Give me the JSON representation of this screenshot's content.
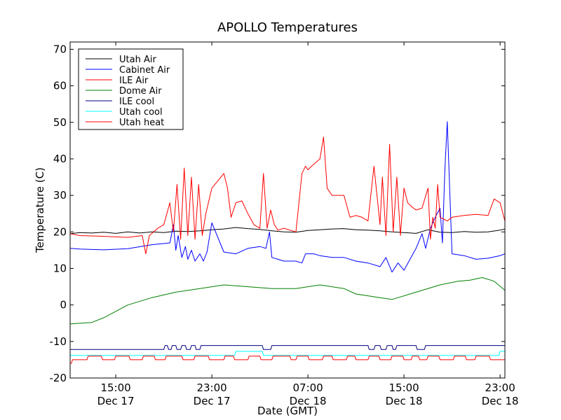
{
  "chart_data": {
    "type": "line",
    "title": "APOLLO Temperatures",
    "xlabel": "Date (GMT)",
    "ylabel": "Temperature (C)",
    "x_units": "hours since Dec 17 00:00 GMT",
    "xlim": [
      11.2,
      47.4
    ],
    "ylim": [
      -20,
      72
    ],
    "grid": false,
    "legend_position": "top-left",
    "yticks": [
      {
        "value": -20,
        "label": "-20"
      },
      {
        "value": -10,
        "label": "-10"
      },
      {
        "value": 0,
        "label": "0"
      },
      {
        "value": 10,
        "label": "10"
      },
      {
        "value": 20,
        "label": "20"
      },
      {
        "value": 30,
        "label": "30"
      },
      {
        "value": 40,
        "label": "40"
      },
      {
        "value": 50,
        "label": "50"
      },
      {
        "value": 60,
        "label": "60"
      },
      {
        "value": 70,
        "label": "70"
      }
    ],
    "xticks": [
      {
        "value": 15,
        "time": "15:00",
        "date": "Dec 17"
      },
      {
        "value": 23,
        "time": "23:00",
        "date": "Dec 17"
      },
      {
        "value": 31,
        "time": "07:00",
        "date": "Dec 18"
      },
      {
        "value": 39,
        "time": "15:00",
        "date": "Dec 18"
      },
      {
        "value": 47,
        "time": "23:00",
        "date": "Dec 18"
      }
    ],
    "series": [
      {
        "name": "Utah Air",
        "color": "#000000",
        "x": [
          11.2,
          12,
          13,
          14,
          15,
          16,
          17,
          18,
          19,
          20,
          21,
          22,
          23,
          24,
          25,
          26,
          27,
          28,
          29,
          30,
          31,
          32,
          33,
          34,
          35,
          36,
          37,
          38,
          39,
          40,
          41,
          42,
          43,
          44,
          45,
          46,
          47,
          47.4
        ],
        "values": [
          19.5,
          19.8,
          19.7,
          19.9,
          19.6,
          20.0,
          19.7,
          20.0,
          19.8,
          20.2,
          20.1,
          20.3,
          20.6,
          20.8,
          21.2,
          20.9,
          20.7,
          20.3,
          20.0,
          19.9,
          20.4,
          20.6,
          20.8,
          20.9,
          20.6,
          20.5,
          20.3,
          20.0,
          19.8,
          19.6,
          20.6,
          19.9,
          19.8,
          20.1,
          19.9,
          20.0,
          20.5,
          20.8
        ]
      },
      {
        "name": "Cabinet Air",
        "color": "#0000ff",
        "x": [
          11.2,
          12,
          14,
          16,
          18,
          19.5,
          19.8,
          20.0,
          20.2,
          20.5,
          20.8,
          21.0,
          21.3,
          21.6,
          22.0,
          22.3,
          22.6,
          23.0,
          24,
          25,
          26,
          27,
          27.5,
          27.8,
          28.0,
          28.5,
          29,
          30,
          30.5,
          30.8,
          31.5,
          32,
          33,
          34,
          35,
          36,
          37,
          37.5,
          38.0,
          38.5,
          39.0,
          40,
          40.5,
          40.8,
          41.2,
          41.6,
          42.0,
          42.2,
          42.4,
          42.6,
          43,
          44,
          45,
          46,
          47,
          47.4
        ],
        "values": [
          15.5,
          15.3,
          15.1,
          15.4,
          16.5,
          17.0,
          22.0,
          15.0,
          19.0,
          13.0,
          16.0,
          12.5,
          15.0,
          12.0,
          14.0,
          12.0,
          14.5,
          22.5,
          14.5,
          14.0,
          15.5,
          16.0,
          15.5,
          20.0,
          13.0,
          12.5,
          12.0,
          12.0,
          11.5,
          14.0,
          14.0,
          13.5,
          13.0,
          13.0,
          12.0,
          11.5,
          10.5,
          13.0,
          9.0,
          11.5,
          9.5,
          15.5,
          19.5,
          15.5,
          21.0,
          24.0,
          26.5,
          17.0,
          37.0,
          50.2,
          14.0,
          13.5,
          12.5,
          12.8,
          13.5,
          14.0
        ]
      },
      {
        "name": "ILE Air",
        "color": "#ff0000",
        "x": [
          11.2,
          12,
          14,
          16,
          17.2,
          17.5,
          17.8,
          18.5,
          19.0,
          19.5,
          19.8,
          20.1,
          20.4,
          20.7,
          21.0,
          21.3,
          21.6,
          21.9,
          22.2,
          22.5,
          23.0,
          23.5,
          24.0,
          24.3,
          24.6,
          25.0,
          25.5,
          26.0,
          26.5,
          27.0,
          27.3,
          27.6,
          27.9,
          28.2,
          28.5,
          29,
          30,
          30.5,
          30.8,
          31.0,
          31.3,
          32.0,
          32.3,
          32.6,
          33.0,
          34,
          34.5,
          35,
          35.5,
          36.0,
          36.5,
          37.0,
          37.2,
          37.5,
          37.8,
          38.1,
          38.4,
          38.7,
          39.0,
          39.3,
          39.6,
          40.0,
          40.5,
          41.0,
          41.2,
          41.4,
          41.6,
          41.8,
          42.0,
          42.3,
          42.6,
          43,
          44,
          45,
          46,
          46.5,
          47,
          47.4
        ],
        "values": [
          19.5,
          19.0,
          18.8,
          18.5,
          19.0,
          14.0,
          19.0,
          21.0,
          22.0,
          28.0,
          20.0,
          33.0,
          18.0,
          37.5,
          19.0,
          35.0,
          18.0,
          33.0,
          19.0,
          25.0,
          32.0,
          34.0,
          36.0,
          32.0,
          24.0,
          28.0,
          28.5,
          25.0,
          22.0,
          21.0,
          36.0,
          21.0,
          26.0,
          22.0,
          20.5,
          21.0,
          20.0,
          36.0,
          38.0,
          37.0,
          38.0,
          40.0,
          46.0,
          32.0,
          30.0,
          30.0,
          24.0,
          24.5,
          24.0,
          23.0,
          38.0,
          22.0,
          35.0,
          19.0,
          44.0,
          20.0,
          35.0,
          19.0,
          32.0,
          28.0,
          27.0,
          26.0,
          26.5,
          32.0,
          18.0,
          24.0,
          21.0,
          33.0,
          24.0,
          23.5,
          23.0,
          24.0,
          24.5,
          24.8,
          24.5,
          29.0,
          28.0,
          23.0
        ]
      },
      {
        "name": "Dome Air",
        "color": "#008000",
        "x": [
          11.2,
          12,
          13,
          14,
          16,
          18,
          20,
          22,
          24,
          26,
          28,
          30,
          32,
          34,
          35,
          36,
          37,
          38,
          40,
          42,
          43.5,
          44.5,
          45.5,
          46.5,
          47.4
        ],
        "values": [
          -5.2,
          -5.0,
          -4.8,
          -3.5,
          0.0,
          2.0,
          3.5,
          4.5,
          5.5,
          5.0,
          4.5,
          4.5,
          5.5,
          4.5,
          3.0,
          2.5,
          2.0,
          1.5,
          3.5,
          5.5,
          6.5,
          6.8,
          7.5,
          6.5,
          4.0
        ]
      },
      {
        "name": "ILE cool",
        "color": "#000080",
        "x": [
          11.2,
          19.0,
          19.1,
          19.3,
          19.4,
          19.6,
          19.7,
          20.0,
          20.1,
          20.4,
          20.5,
          20.8,
          20.9,
          21.2,
          21.3,
          21.6,
          21.7,
          22.0,
          22.1,
          24.0,
          26.0,
          27.2,
          27.3,
          27.9,
          28.0,
          33.5,
          33.6,
          36.0,
          36.1,
          36.5,
          36.6,
          37.0,
          37.1,
          37.5,
          37.6,
          38.0,
          38.1,
          38.3,
          38.4,
          40.0,
          40.1,
          40.7,
          40.8,
          42.0,
          42.1,
          47.4
        ],
        "values": [
          -12.2,
          -12.2,
          -11.1,
          -11.1,
          -12.2,
          -12.2,
          -11.1,
          -11.1,
          -12.2,
          -12.2,
          -11.1,
          -11.1,
          -12.2,
          -12.2,
          -11.1,
          -11.1,
          -12.2,
          -12.2,
          -11.1,
          -11.1,
          -11.1,
          -11.1,
          -12.2,
          -12.2,
          -11.1,
          -11.1,
          -11.1,
          -11.1,
          -12.2,
          -12.2,
          -11.1,
          -11.1,
          -12.2,
          -12.2,
          -11.1,
          -11.1,
          -12.2,
          -12.2,
          -11.1,
          -11.1,
          -12.2,
          -12.2,
          -11.1,
          -11.1,
          -11.1,
          -11.1
        ]
      },
      {
        "name": "Utah cool",
        "color": "#00ffff",
        "x": [
          11.2,
          24.9,
          25.0,
          25.3,
          25.4,
          27.2,
          27.3,
          46.9,
          47.0,
          47.4
        ],
        "values": [
          -13.8,
          -13.8,
          -12.7,
          -12.7,
          -12.7,
          -12.7,
          -13.8,
          -13.8,
          -12.7,
          -12.7
        ]
      },
      {
        "name": "Utah heat",
        "color": "#ff0000",
        "x": [
          11.2,
          11.3,
          11.4,
          12.6,
          12.7,
          13.8,
          13.9,
          14.9,
          15.0,
          16.1,
          16.2,
          17.2,
          17.3,
          18.2,
          18.3,
          19.1,
          19.2,
          20.5,
          20.6,
          21.5,
          21.6,
          22.7,
          22.8,
          24.0,
          24.1,
          24.8,
          24.9,
          26.0,
          26.1,
          27.0,
          27.1,
          28.0,
          28.1,
          29.5,
          29.6,
          30.0,
          30.1,
          31.0,
          31.1,
          32.2,
          32.3,
          33.0,
          33.1,
          34.2,
          34.3,
          34.9,
          35.0,
          36.0,
          36.1,
          36.9,
          37.0,
          37.9,
          38.0,
          38.9,
          39.0,
          39.6,
          39.7,
          40.2,
          40.3,
          40.9,
          41.0,
          41.9,
          42.0,
          43.1,
          43.2,
          44.1,
          44.2,
          44.9,
          45.0,
          46.1,
          46.2,
          47.4
        ],
        "values": [
          -16.0,
          -16.0,
          -15.0,
          -15.0,
          -14.0,
          -14.0,
          -15.0,
          -15.0,
          -14.0,
          -14.0,
          -15.0,
          -15.0,
          -14.0,
          -14.0,
          -15.0,
          -15.0,
          -14.0,
          -14.0,
          -15.0,
          -15.0,
          -14.0,
          -14.0,
          -15.0,
          -15.0,
          -14.0,
          -14.0,
          -15.0,
          -15.0,
          -14.0,
          -14.0,
          -15.0,
          -15.0,
          -14.0,
          -14.0,
          -15.0,
          -15.0,
          -14.0,
          -14.0,
          -15.0,
          -15.0,
          -14.0,
          -14.0,
          -15.0,
          -15.0,
          -14.0,
          -14.0,
          -15.0,
          -15.0,
          -14.0,
          -14.0,
          -15.0,
          -15.0,
          -14.0,
          -14.0,
          -15.0,
          -15.0,
          -14.0,
          -14.0,
          -15.0,
          -15.0,
          -14.0,
          -14.0,
          -15.0,
          -15.0,
          -14.0,
          -14.0,
          -15.0,
          -15.0,
          -14.0,
          -14.0,
          -15.0,
          -15.0
        ]
      }
    ]
  }
}
